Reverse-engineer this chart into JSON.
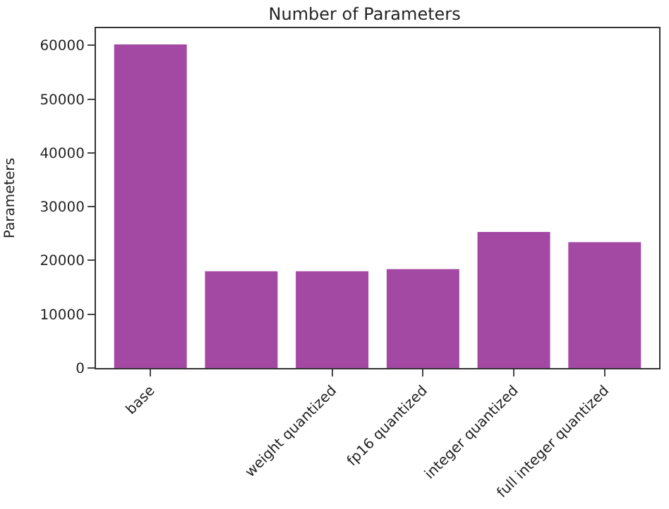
{
  "chart_data": {
    "type": "bar",
    "title": "Number of Parameters",
    "ylabel": "Parameters",
    "categories": [
      "base",
      null,
      "weight quantized",
      "fp16 quantized",
      "integer quantized",
      "full integer quantized"
    ],
    "values": [
      60200,
      18000,
      18000,
      18400,
      25300,
      23400
    ],
    "color": "#a349a4",
    "ylim": [
      0,
      63200
    ],
    "yticks": [
      0,
      10000,
      20000,
      30000,
      40000,
      50000,
      60000
    ]
  }
}
